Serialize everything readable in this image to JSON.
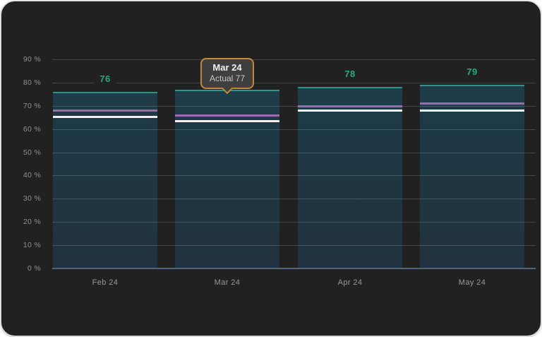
{
  "page": {
    "background_color": "#ffffff"
  },
  "card": {
    "background_color": "#212121"
  },
  "chart_data": {
    "type": "bar",
    "categories": [
      "Feb 24",
      "Mar 24",
      "Apr 24",
      "May 24"
    ],
    "series": [
      {
        "name": "Actual",
        "role": "bar",
        "values": [
          76,
          77,
          78,
          79
        ],
        "color": "#2aa87d"
      },
      {
        "name": "purple-marker-line",
        "role": "line-marker",
        "values": [
          68,
          66,
          70,
          71
        ],
        "color": "#9d6bab"
      },
      {
        "name": "white-marker-line",
        "role": "line-marker",
        "values": [
          65.5,
          63.5,
          68,
          68
        ],
        "color": "#f2f2f2"
      }
    ],
    "yticks": [
      "90 %",
      "80 %",
      "70 %",
      "60 %",
      "50 %",
      "40 %",
      "30 %",
      "20 %",
      "10 %",
      "0 %"
    ],
    "ylim": [
      0,
      90
    ],
    "grid": true,
    "legend": false,
    "tooltip": {
      "title": "Mar 24",
      "body": "Actual 77"
    },
    "colors": {
      "bar_fill_top": "#1e3c49",
      "bar_fill_bottom": "#223240",
      "bar_top_edge": "#2e9688",
      "value_label": "#2aa87d",
      "grid_line": "rgba(200,205,210,0.22)",
      "axis_line": "#4f6579",
      "axis_text": "#909090",
      "tooltip_border": "#c0893c",
      "tooltip_bg": "#3f3f3f",
      "tooltip_title_color": "#f0f0f0",
      "tooltip_body_color": "#c8c8c8"
    }
  }
}
